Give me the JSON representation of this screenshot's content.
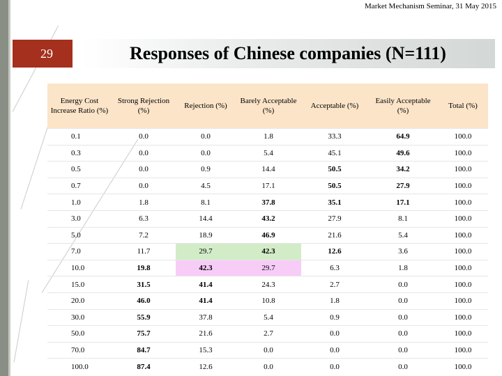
{
  "header": {
    "seminar": "Market Mechanism Seminar, 31 May 2015"
  },
  "slide": {
    "number": "29",
    "title": "Responses of Chinese companies (N=111)"
  },
  "table": {
    "columns": [
      "Energy Cost Increase Ratio (%)",
      "Strong Rejection (%)",
      "Rejection (%)",
      "Barely Acceptable (%)",
      "Acceptable (%)",
      "Easily Acceptable (%)",
      "Total (%)"
    ],
    "rows": [
      [
        "0.1",
        "0.0",
        "0.0",
        "1.8",
        "33.3",
        "64.9",
        "100.0"
      ],
      [
        "0.3",
        "0.0",
        "0.0",
        "5.4",
        "45.1",
        "49.6",
        "100.0"
      ],
      [
        "0.5",
        "0.0",
        "0.9",
        "14.4",
        "50.5",
        "34.2",
        "100.0"
      ],
      [
        "0.7",
        "0.0",
        "4.5",
        "17.1",
        "50.5",
        "27.9",
        "100.0"
      ],
      [
        "1.0",
        "1.8",
        "8.1",
        "37.8",
        "35.1",
        "17.1",
        "100.0"
      ],
      [
        "3.0",
        "6.3",
        "14.4",
        "43.2",
        "27.9",
        "8.1",
        "100.0"
      ],
      [
        "5.0",
        "7.2",
        "18.9",
        "46.9",
        "21.6",
        "5.4",
        "100.0"
      ],
      [
        "7.0",
        "11.7",
        "29.7",
        "42.3",
        "12.6",
        "3.6",
        "100.0"
      ],
      [
        "10.0",
        "19.8",
        "42.3",
        "29.7",
        "6.3",
        "1.8",
        "100.0"
      ],
      [
        "15.0",
        "31.5",
        "41.4",
        "24.3",
        "2.7",
        "0.0",
        "100.0"
      ],
      [
        "20.0",
        "46.0",
        "41.4",
        "10.8",
        "1.8",
        "0.0",
        "100.0"
      ],
      [
        "30.0",
        "55.9",
        "37.8",
        "5.4",
        "0.9",
        "0.0",
        "100.0"
      ],
      [
        "50.0",
        "75.7",
        "21.6",
        "2.7",
        "0.0",
        "0.0",
        "100.0"
      ],
      [
        "70.0",
        "84.7",
        "15.3",
        "0.0",
        "0.0",
        "0.0",
        "100.0"
      ],
      [
        "100.0",
        "87.4",
        "12.6",
        "0.0",
        "0.0",
        "0.0",
        "100.0"
      ]
    ],
    "bold_cells": [
      [
        0,
        5
      ],
      [
        1,
        5
      ],
      [
        2,
        4
      ],
      [
        2,
        5
      ],
      [
        3,
        4
      ],
      [
        3,
        5
      ],
      [
        4,
        3
      ],
      [
        4,
        4
      ],
      [
        4,
        5
      ],
      [
        5,
        3
      ],
      [
        6,
        3
      ],
      [
        7,
        3
      ],
      [
        7,
        4
      ],
      [
        8,
        1
      ],
      [
        8,
        2
      ],
      [
        9,
        1
      ],
      [
        9,
        2
      ],
      [
        10,
        1
      ],
      [
        10,
        2
      ],
      [
        11,
        1
      ],
      [
        12,
        1
      ],
      [
        13,
        1
      ],
      [
        14,
        1
      ]
    ],
    "highlighted_cells": [
      {
        "row": 7,
        "col": 2,
        "color": "#d2ecc8"
      },
      {
        "row": 7,
        "col": 3,
        "color": "#d2ecc8"
      },
      {
        "row": 8,
        "col": 2,
        "color": "#f7ccf7"
      },
      {
        "row": 8,
        "col": 3,
        "color": "#f7ccf7"
      }
    ]
  },
  "colors": {
    "badge": "#a4301d",
    "header_fill": "#fbe4c8",
    "sidebar": "#8a8f86"
  }
}
